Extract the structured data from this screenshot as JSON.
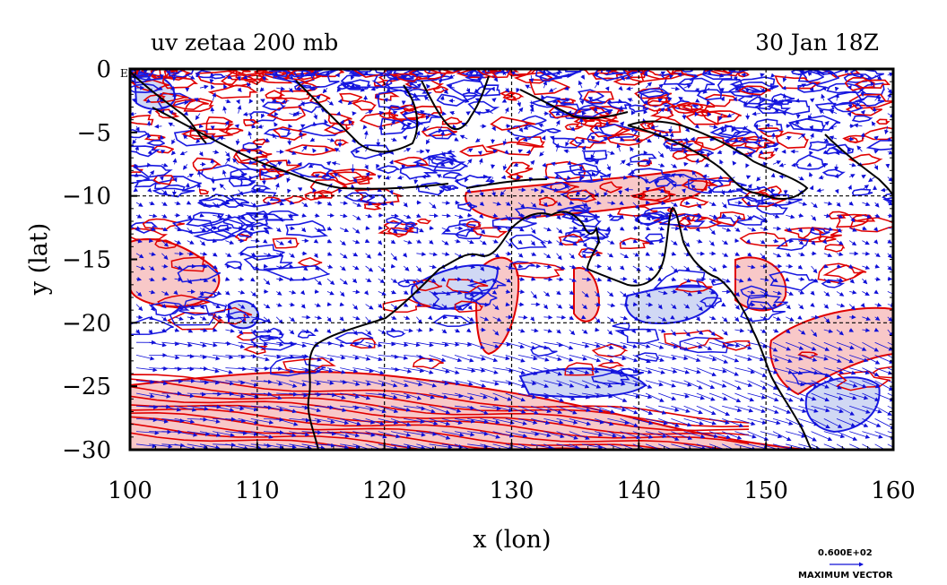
{
  "header": {
    "title_left": "uv zetaa 200 mb",
    "title_right": "30 Jan 18Z"
  },
  "axes": {
    "x_label": "x (lon)",
    "y_label": "y (lat)",
    "x_ticks": [
      100,
      110,
      120,
      130,
      140,
      150,
      160
    ],
    "x_tick_labels": [
      "100",
      "110",
      "120",
      "130",
      "140",
      "150",
      "160"
    ],
    "y_ticks": [
      0,
      -5,
      -10,
      -15,
      -20,
      -25,
      -30
    ],
    "y_tick_labels": [
      "0",
      "−5",
      "−10",
      "−15",
      "−20",
      "−25",
      "−30"
    ],
    "x_range": [
      100,
      160
    ],
    "y_range": [
      -30,
      0
    ],
    "grid_x": [
      110,
      120,
      130,
      140,
      150
    ],
    "grid_y": [
      -10,
      -20
    ],
    "corner_tag": "EQ"
  },
  "legend": {
    "max_value_text": "0.600E+02",
    "max_vector_label": "MAXIMUM VECTOR"
  },
  "colors": {
    "positive_contour": "#e00000",
    "positive_fill": "#f8c8c8",
    "negative_contour": "#1818e0",
    "negative_fill": "#d0d8f4",
    "vector": "#1010d8",
    "coastline": "#000000",
    "grid": "#000000"
  },
  "map": {
    "projection": "lat-lon",
    "lon_range": [
      100,
      160
    ],
    "lat_range": [
      -30,
      0
    ],
    "features": [
      "coastline",
      "wind vectors",
      "vorticity contours"
    ]
  }
}
